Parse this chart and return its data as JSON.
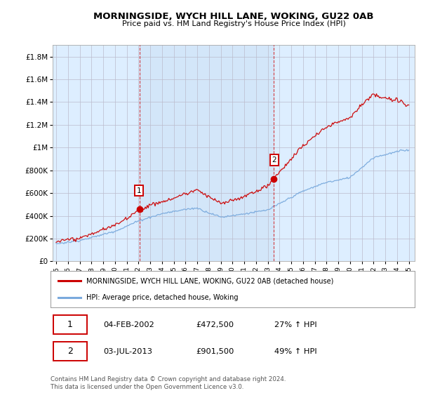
{
  "title": "MORNINGSIDE, WYCH HILL LANE, WOKING, GU22 0AB",
  "subtitle": "Price paid vs. HM Land Registry's House Price Index (HPI)",
  "ylim": [
    0,
    1900000
  ],
  "yticks": [
    0,
    200000,
    400000,
    600000,
    800000,
    1000000,
    1200000,
    1400000,
    1600000,
    1800000
  ],
  "ytick_labels": [
    "£0",
    "£200K",
    "£400K",
    "£600K",
    "£800K",
    "£1M",
    "£1.2M",
    "£1.4M",
    "£1.6M",
    "£1.8M"
  ],
  "legend_line1": "MORNINGSIDE, WYCH HILL LANE, WOKING, GU22 0AB (detached house)",
  "legend_line2": "HPI: Average price, detached house, Woking",
  "sale1_date": "04-FEB-2002",
  "sale1_price": "£472,500",
  "sale1_hpi": "27% ↑ HPI",
  "sale2_date": "03-JUL-2013",
  "sale2_price": "£901,500",
  "sale2_hpi": "49% ↑ HPI",
  "footer": "Contains HM Land Registry data © Crown copyright and database right 2024.\nThis data is licensed under the Open Government Licence v3.0.",
  "red_color": "#cc0000",
  "blue_color": "#7aaadd",
  "highlight_color": "#ddeeff",
  "background_color": "#ddeeff",
  "plot_bg_color": "#ffffff",
  "grid_color": "#bbbbcc",
  "sale1_year": 2002.09,
  "sale1_value": 472500,
  "sale2_year": 2013.5,
  "sale2_value": 901500,
  "xmin": 1994.7,
  "xmax": 2025.5
}
